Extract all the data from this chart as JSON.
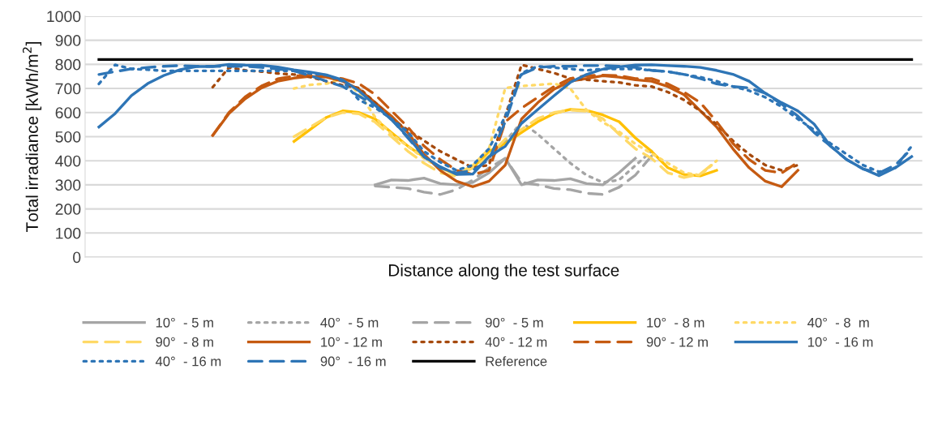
{
  "chart_data": {
    "type": "line",
    "xlabel": "Distance along the test surface",
    "ylabel": "Total irradiance [kWh/m$^{2}$]",
    "categories": [
      null,
      null,
      null,
      null,
      null,
      null,
      null,
      null,
      null,
      null,
      null,
      null,
      null,
      null,
      null,
      null,
      null,
      null,
      null,
      null,
      null,
      null,
      null,
      null,
      null,
      null,
      null,
      null,
      null,
      null,
      null,
      null,
      null,
      null,
      null,
      null,
      null,
      null,
      null,
      null,
      null,
      null,
      null,
      null,
      null,
      null,
      null,
      null,
      null,
      null,
      null
    ],
    "ylim": [
      0,
      1000
    ],
    "yticks": [
      0,
      100,
      200,
      300,
      400,
      500,
      600,
      700,
      800,
      900,
      1000
    ],
    "grid": "y",
    "legend": "bottom",
    "tick_labels": "y",
    "series": [
      {
        "name": "10°  - 5 m",
        "color": "#a5a5a5",
        "line_style": "solid",
        "values": [
          null,
          null,
          null,
          null,
          null,
          null,
          null,
          null,
          null,
          null,
          null,
          null,
          null,
          null,
          null,
          null,
          null,
          300,
          320,
          318,
          328,
          305,
          300,
          310,
          350,
          410,
          300,
          320,
          318,
          325,
          305,
          300,
          350,
          410,
          null,
          null,
          null,
          null,
          null,
          null,
          null,
          null,
          null,
          null,
          null,
          null,
          null,
          null,
          null,
          null,
          null
        ]
      },
      {
        "name": "40°  - 5 m",
        "color": "#a5a5a5",
        "line_style": "dotted",
        "values": [
          null,
          null,
          null,
          null,
          null,
          null,
          null,
          null,
          null,
          null,
          null,
          null,
          null,
          null,
          null,
          null,
          null,
          null,
          null,
          null,
          null,
          null,
          null,
          null,
          400,
          480,
          560,
          510,
          450,
          390,
          340,
          310,
          320,
          380,
          440,
          null,
          null,
          null,
          null,
          null,
          null,
          null,
          null,
          null,
          null,
          null,
          null,
          null,
          null,
          null,
          null
        ]
      },
      {
        "name": "90°  - 5 m",
        "color": "#a5a5a5",
        "line_style": "dashed",
        "values": [
          null,
          null,
          null,
          null,
          null,
          null,
          null,
          null,
          null,
          null,
          null,
          null,
          null,
          null,
          null,
          null,
          null,
          295,
          290,
          285,
          270,
          260,
          280,
          320,
          370,
          410,
          310,
          300,
          285,
          280,
          265,
          260,
          290,
          340,
          420,
          null,
          null,
          null,
          null,
          null,
          null,
          null,
          null,
          null,
          null,
          null,
          null,
          null,
          null,
          null,
          null
        ]
      },
      {
        "name": "10°  - 8 m",
        "color": "#ffc000",
        "line_style": "solid",
        "values": [
          null,
          null,
          null,
          null,
          null,
          null,
          null,
          null,
          null,
          null,
          null,
          null,
          480,
          530,
          580,
          607,
          600,
          573,
          517,
          461,
          416,
          371,
          343,
          371,
          439,
          472,
          517,
          562,
          596,
          613,
          609,
          590,
          562,
          495,
          439,
          371,
          343,
          337,
          360,
          null,
          null,
          null,
          null,
          null,
          null,
          null,
          null,
          null,
          null,
          null,
          null
        ]
      },
      {
        "name": "40°  - 8  m",
        "color": "#ffd966",
        "line_style": "dotted",
        "values": [
          null,
          null,
          null,
          null,
          null,
          null,
          null,
          null,
          null,
          null,
          null,
          null,
          700,
          715,
          720,
          740,
          680,
          580,
          510,
          460,
          410,
          370,
          345,
          380,
          450,
          702,
          710,
          715,
          720,
          700,
          610,
          560,
          520,
          470,
          430,
          390,
          350,
          340,
          400,
          null,
          null,
          null,
          null,
          null,
          null,
          null,
          null,
          null,
          null,
          null,
          null
        ]
      },
      {
        "name": "90°  - 8 m",
        "color": "#ffd966",
        "line_style": "dashed",
        "values": [
          null,
          null,
          null,
          null,
          null,
          null,
          null,
          null,
          null,
          null,
          null,
          null,
          500,
          540,
          580,
          600,
          595,
          560,
          500,
          440,
          390,
          350,
          335,
          370,
          420,
          490,
          530,
          575,
          600,
          610,
          605,
          575,
          510,
          450,
          410,
          350,
          330,
          345,
          400,
          null,
          null,
          null,
          null,
          null,
          null,
          null,
          null,
          null,
          null,
          null,
          null
        ]
      },
      {
        "name": "10° - 12 m",
        "color": "#c55a11",
        "line_style": "solid",
        "values": [
          null,
          null,
          null,
          null,
          null,
          null,
          null,
          505,
          596,
          657,
          702,
          730,
          743,
          750,
          747,
          730,
          697,
          641,
          585,
          517,
          427,
          360,
          315,
          292,
          315,
          382,
          573,
          641,
          697,
          730,
          741,
          753,
          747,
          736,
          730,
          708,
          674,
          607,
          540,
          450,
          371,
          315,
          292,
          360,
          null,
          null,
          null,
          null,
          null,
          null,
          null
        ]
      },
      {
        "name": "40° - 12 m",
        "color": "#a5490c",
        "line_style": "dotted",
        "values": [
          null,
          null,
          null,
          null,
          null,
          null,
          null,
          705,
          787,
          775,
          770,
          762,
          758,
          747,
          730,
          713,
          702,
          641,
          573,
          528,
          483,
          439,
          405,
          371,
          382,
          585,
          798,
          781,
          764,
          741,
          736,
          730,
          725,
          713,
          708,
          685,
          652,
          607,
          551,
          483,
          427,
          382,
          360,
          382,
          null,
          null,
          null,
          null,
          null,
          null,
          null
        ]
      },
      {
        "name": "90° - 12 m",
        "color": "#c55a11",
        "line_style": "dashed",
        "values": [
          null,
          null,
          null,
          null,
          null,
          null,
          null,
          505,
          600,
          665,
          710,
          740,
          752,
          755,
          750,
          740,
          720,
          674,
          607,
          540,
          461,
          405,
          360,
          343,
          360,
          562,
          618,
          663,
          708,
          741,
          753,
          755,
          753,
          741,
          741,
          719,
          685,
          641,
          562,
          472,
          405,
          360,
          349,
          394,
          null,
          null,
          null,
          null,
          null,
          null,
          null
        ]
      },
      {
        "name": "10°  - 16 m",
        "color": "#2e75b6",
        "line_style": "solid",
        "values": [
          540,
          596,
          670,
          720,
          754,
          778,
          791,
          791,
          800,
          797,
          796,
          789,
          777,
          768,
          756,
          735,
          690,
          630,
          570,
          500,
          417,
          375,
          343,
          345,
          417,
          460,
          555,
          613,
          670,
          725,
          758,
          780,
          790,
          797,
          798,
          795,
          792,
          787,
          775,
          759,
          730,
          680,
          641,
          607,
          552,
          461,
          405,
          367,
          338,
          371,
          417
        ]
      },
      {
        "name": "40°  - 16 m",
        "color": "#2e75b6",
        "line_style": "dotted",
        "values": [
          719,
          798,
          781,
          778,
          773,
          773,
          773,
          773,
          773,
          773,
          773,
          773,
          773,
          762,
          755,
          730,
          652,
          620,
          573,
          520,
          439,
          394,
          360,
          382,
          450,
          585,
          764,
          792,
          786,
          781,
          775,
          781,
          781,
          781,
          775,
          770,
          758,
          747,
          730,
          708,
          691,
          663,
          624,
          573,
          528,
          472,
          427,
          382,
          354,
          371,
          461
        ]
      },
      {
        "name": "90°  - 16 m",
        "color": "#2e75b6",
        "line_style": "dashed",
        "values": [
          758,
          770,
          781,
          787,
          792,
          795,
          792,
          792,
          792,
          792,
          787,
          781,
          773,
          753,
          730,
          708,
          668,
          630,
          573,
          495,
          416,
          371,
          349,
          360,
          405,
          562,
          758,
          787,
          792,
          792,
          795,
          795,
          792,
          787,
          775,
          770,
          758,
          741,
          719,
          708,
          702,
          680,
          635,
          585,
          517,
          461,
          405,
          366,
          349,
          382,
          450
        ]
      },
      {
        "name": "Reference",
        "color": "#000000",
        "line_style": "solid",
        "values": [
          820,
          820,
          820,
          820,
          820,
          820,
          820,
          820,
          820,
          820,
          820,
          820,
          820,
          820,
          820,
          820,
          820,
          820,
          820,
          820,
          820,
          820,
          820,
          820,
          820,
          820,
          820,
          820,
          820,
          820,
          820,
          820,
          820,
          820,
          820,
          820,
          820,
          820,
          820,
          820,
          820,
          820,
          820,
          820,
          820,
          820,
          820,
          820,
          820,
          820,
          820
        ]
      }
    ]
  }
}
